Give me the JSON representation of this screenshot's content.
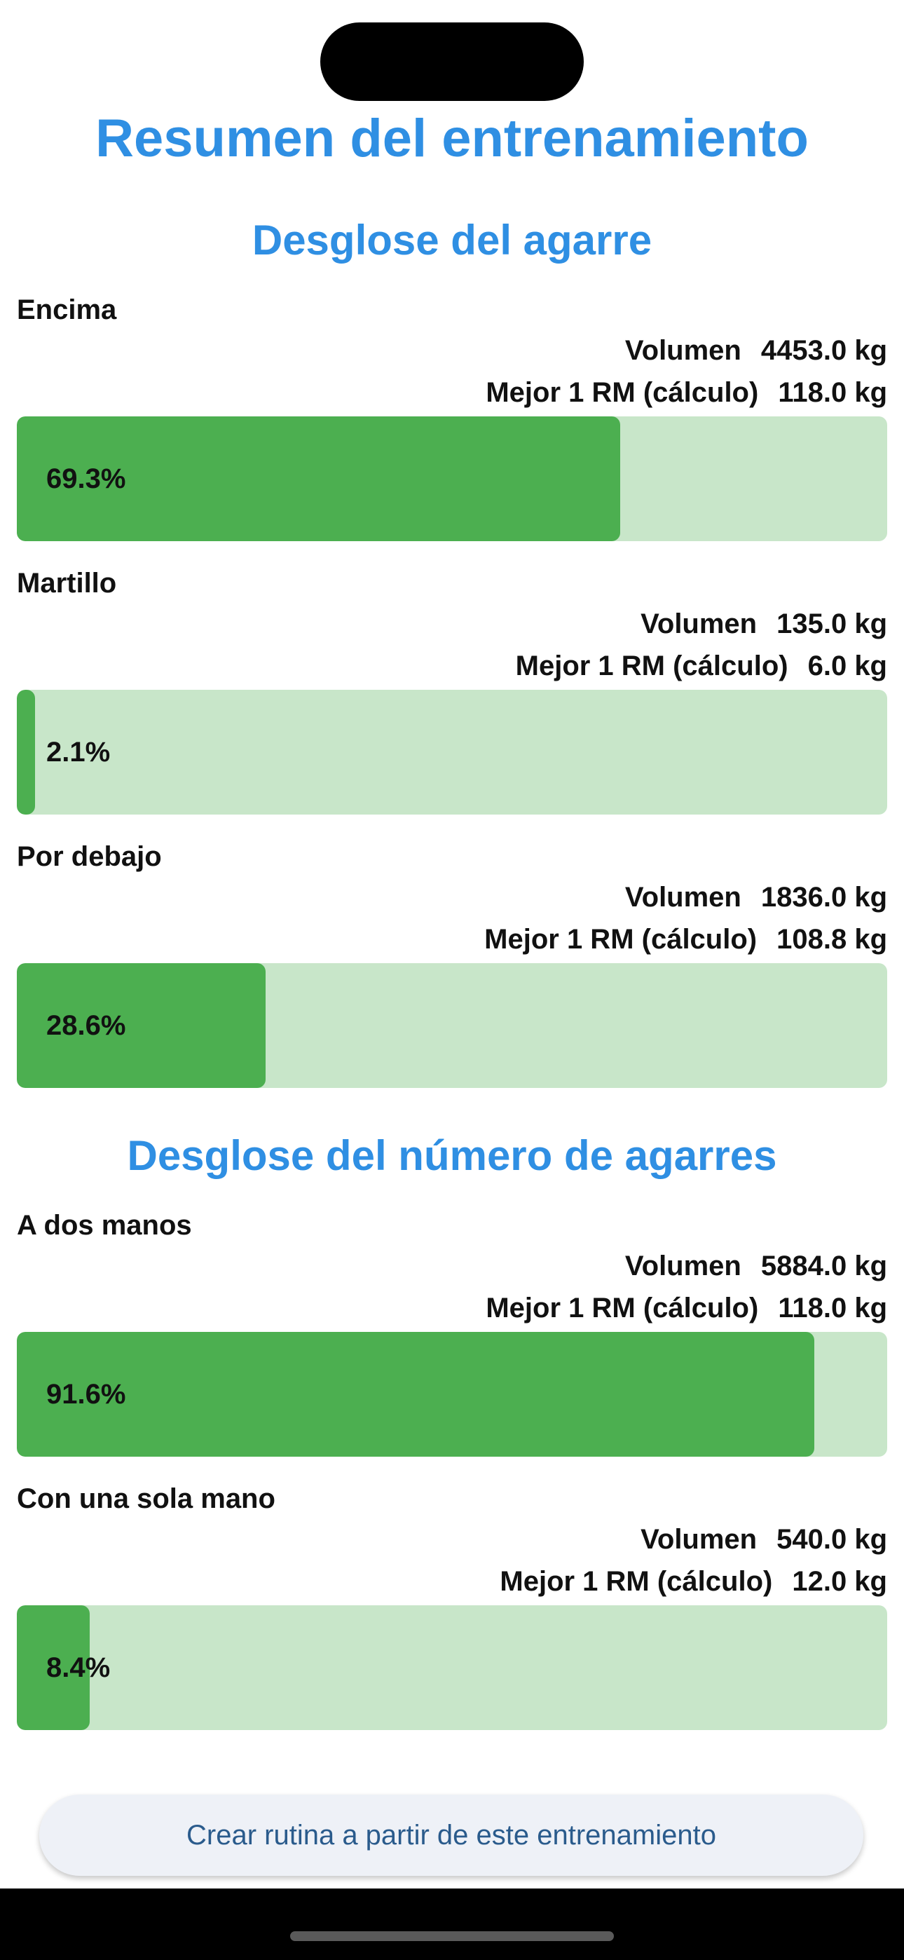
{
  "page_title": "Resumen del entrenamiento",
  "sections": [
    {
      "title": "Desglose del agarre",
      "items": [
        {
          "name": "Encima",
          "volume_label": "Volumen",
          "volume": "4453.0 kg",
          "rm_label": "Mejor 1 RM (cálculo)",
          "rm": "118.0 kg",
          "percent_text": "69.3%",
          "percent": 69.3
        },
        {
          "name": "Martillo",
          "volume_label": "Volumen",
          "volume": "135.0 kg",
          "rm_label": "Mejor 1 RM (cálculo)",
          "rm": "6.0 kg",
          "percent_text": "2.1%",
          "percent": 2.1
        },
        {
          "name": "Por debajo",
          "volume_label": "Volumen",
          "volume": "1836.0 kg",
          "rm_label": "Mejor 1 RM (cálculo)",
          "rm": "108.8 kg",
          "percent_text": "28.6%",
          "percent": 28.6
        }
      ]
    },
    {
      "title": "Desglose del número de agarres",
      "items": [
        {
          "name": "A dos manos",
          "volume_label": "Volumen",
          "volume": "5884.0 kg",
          "rm_label": "Mejor 1 RM (cálculo)",
          "rm": "118.0 kg",
          "percent_text": "91.6%",
          "percent": 91.6
        },
        {
          "name": "Con una sola mano",
          "volume_label": "Volumen",
          "volume": "540.0 kg",
          "rm_label": "Mejor 1 RM (cálculo)",
          "rm": "12.0 kg",
          "percent_text": "8.4%",
          "percent": 8.4
        }
      ]
    }
  ],
  "create_button_label": "Crear rutina a partir de este entrenamiento",
  "colors": {
    "accent": "#2f8fe3",
    "bar_fill": "#4caf50",
    "bar_track": "#c8e6c9"
  }
}
